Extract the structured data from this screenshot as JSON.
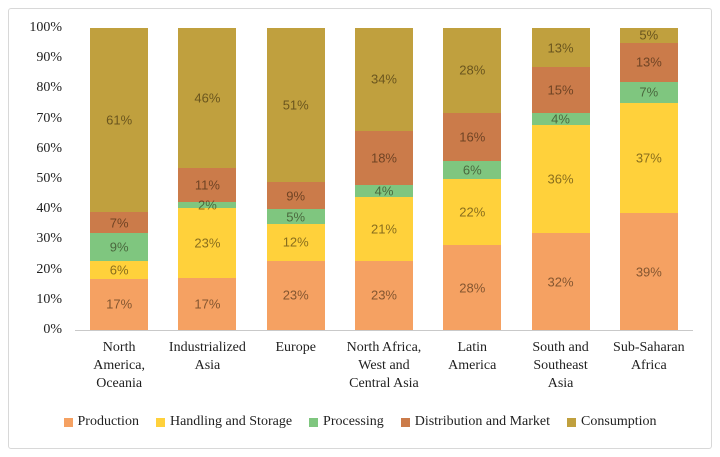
{
  "chart_data": {
    "type": "bar",
    "stacked": true,
    "title": "",
    "xlabel": "",
    "ylabel": "",
    "ylim": [
      0,
      100
    ],
    "grid": false,
    "legend_position": "bottom",
    "y_ticks": [
      "0%",
      "10%",
      "20%",
      "30%",
      "40%",
      "50%",
      "60%",
      "70%",
      "80%",
      "90%",
      "100%"
    ],
    "categories": [
      "North\nAmerica,\nOceania",
      "Industrialized\nAsia",
      "Europe",
      "North Africa,\nWest and\nCentral Asia",
      "Latin\nAmerica",
      "South and\nSoutheast\nAsia",
      "Sub-Saharan\nAfrica"
    ],
    "series": [
      {
        "name": "Production",
        "color": "#F5A162",
        "values": [
          17,
          17,
          23,
          23,
          28,
          32,
          39
        ]
      },
      {
        "name": "Handling and Storage",
        "color": "#FFD13B",
        "values": [
          6,
          23,
          12,
          21,
          22,
          36,
          37
        ]
      },
      {
        "name": "Processing",
        "color": "#7FC67F",
        "values": [
          9,
          2,
          5,
          4,
          6,
          4,
          7
        ]
      },
      {
        "name": "Distribution and Market",
        "color": "#CB7B4A",
        "values": [
          7,
          11,
          9,
          18,
          16,
          15,
          13
        ]
      },
      {
        "name": "Consumption",
        "color": "#C0A03E",
        "values": [
          61,
          46,
          51,
          34,
          28,
          13,
          5
        ]
      }
    ],
    "value_suffix": "%"
  },
  "colors": {
    "frame_border": "#d8d8d8",
    "axis_line": "#c9c9c9",
    "text": "#1f1f1f"
  }
}
